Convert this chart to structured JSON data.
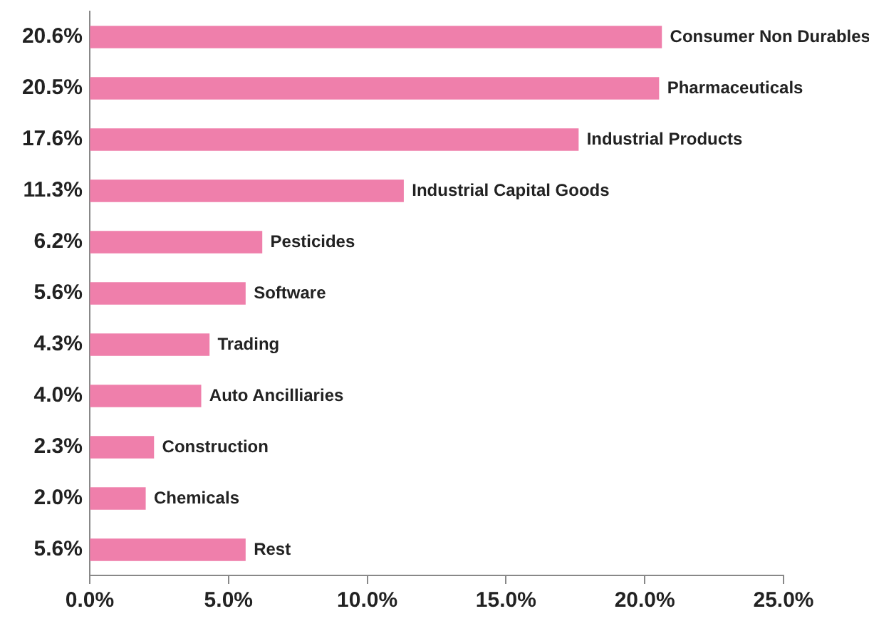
{
  "chart_data": {
    "type": "bar",
    "orientation": "horizontal",
    "categories": [
      "Consumer Non Durables",
      "Pharmaceuticals",
      "Industrial Products",
      "Industrial Capital Goods",
      "Pesticides",
      "Software",
      "Trading",
      "Auto Ancilliaries",
      "Construction",
      "Chemicals",
      "Rest"
    ],
    "values": [
      20.6,
      20.5,
      17.6,
      11.3,
      6.2,
      5.6,
      4.3,
      4.0,
      2.3,
      2.0,
      5.6
    ],
    "value_labels": [
      "20.6%",
      "20.5%",
      "17.6%",
      "11.3%",
      "6.2%",
      "5.6%",
      "4.3%",
      "4.0%",
      "2.3%",
      "2.0%",
      "5.6%"
    ],
    "color": "#ef7fab",
    "xlim": [
      0,
      25
    ],
    "xticks": [
      {
        "value": 0,
        "label": "0.0%"
      },
      {
        "value": 5,
        "label": "5.0%"
      },
      {
        "value": 10,
        "label": "10.0%"
      },
      {
        "value": 15,
        "label": "15.0%"
      },
      {
        "value": 20,
        "label": "20.0%"
      },
      {
        "value": 25,
        "label": "25.0%"
      }
    ]
  }
}
